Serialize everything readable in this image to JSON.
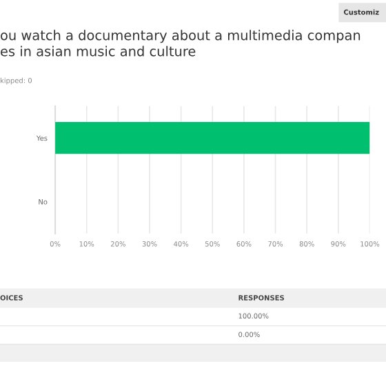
{
  "chart_data": {
    "type": "bar",
    "orientation": "horizontal",
    "title": "ou watch a documentary about a multimedia compan\nes in asian music and culture",
    "categories": [
      "Yes",
      "No"
    ],
    "values": [
      100,
      0
    ],
    "color": "#00bf6f",
    "xlim": [
      0,
      100
    ],
    "xticks": [
      {
        "value": 0,
        "label": "0%"
      },
      {
        "value": 10,
        "label": "10%"
      },
      {
        "value": 20,
        "label": "20%"
      },
      {
        "value": 30,
        "label": "30%"
      },
      {
        "value": 40,
        "label": "40%"
      },
      {
        "value": 50,
        "label": "50%"
      },
      {
        "value": 60,
        "label": "60%"
      },
      {
        "value": 70,
        "label": "70%"
      },
      {
        "value": 80,
        "label": "80%"
      },
      {
        "value": 90,
        "label": "90%"
      },
      {
        "value": 100,
        "label": "100%"
      }
    ],
    "grid": "x",
    "annotations": [
      "Customiz",
      "kipped: 0",
      "OICES",
      "RESPONSES",
      "100.00%",
      "0.00%"
    ]
  }
}
